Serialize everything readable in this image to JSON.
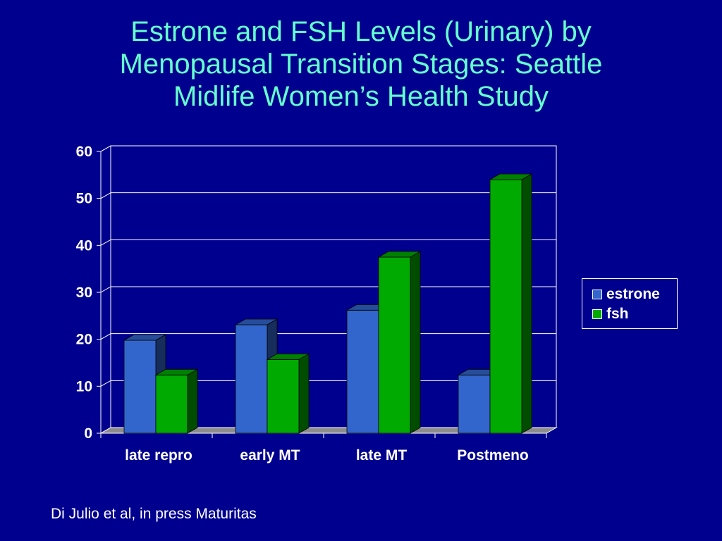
{
  "title_lines": [
    "Estrone and FSH Levels (Urinary) by",
    "Menopausal Transition Stages:  Seattle",
    "Midlife Women’s Health Study"
  ],
  "source_note": "Di Julio et al, in press Maturitas",
  "colors": {
    "background": "#00008e",
    "title": "#66ffcc",
    "estrone": "#3366cc",
    "fsh": "#00aa00"
  },
  "chart_data": {
    "type": "bar",
    "title": "Estrone and FSH Levels (Urinary) by Menopausal Transition Stages:  Seattle Midlife Women’s Health Study",
    "categories": [
      "late repro",
      "early MT",
      "late MT",
      "Postmeno"
    ],
    "series": [
      {
        "name": "estrone",
        "values": [
          19.8,
          23.1,
          26.2,
          12.4
        ]
      },
      {
        "name": "fsh",
        "values": [
          12.4,
          15.7,
          37.5,
          54
        ]
      }
    ],
    "ylim": [
      0,
      60
    ],
    "yticks": [
      "0",
      "10",
      "20",
      "30",
      "40",
      "50",
      "60"
    ],
    "xlabel": "",
    "ylabel": "",
    "grid": true,
    "legend_position": "right"
  }
}
